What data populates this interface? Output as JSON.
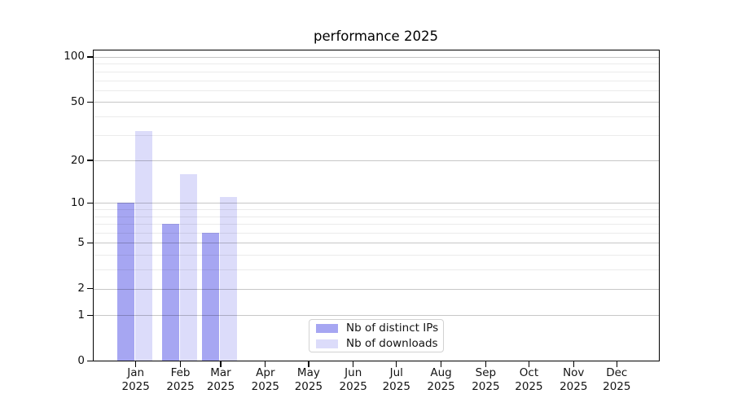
{
  "chart_data": {
    "type": "bar",
    "title": "performance 2025",
    "categories": [
      "Jan 2025",
      "Feb 2025",
      "Mar 2025",
      "Apr 2025",
      "May 2025",
      "Jun 2025",
      "Jul 2025",
      "Aug 2025",
      "Sep 2025",
      "Oct 2025",
      "Nov 2025",
      "Dec 2025"
    ],
    "month_labels": [
      "Jan",
      "Feb",
      "Mar",
      "Apr",
      "May",
      "Jun",
      "Jul",
      "Aug",
      "Sep",
      "Oct",
      "Nov",
      "Dec"
    ],
    "year_label": "2025",
    "series": [
      {
        "name": "Nb of distinct IPs",
        "color": "#a6a6f2",
        "values": [
          10,
          7,
          6,
          0,
          0,
          0,
          0,
          0,
          0,
          0,
          0,
          0
        ]
      },
      {
        "name": "Nb of downloads",
        "color": "#dcdcfa",
        "values": [
          32,
          16,
          11,
          0,
          0,
          0,
          0,
          0,
          0,
          0,
          0,
          0
        ]
      }
    ],
    "y_axis": {
      "scale": "symlog (log(1+x))",
      "ticks": [
        0,
        1,
        2,
        5,
        10,
        20,
        50,
        100
      ],
      "minor_ticks": [
        3,
        4,
        6,
        7,
        8,
        9,
        30,
        40,
        60,
        70,
        80,
        90
      ],
      "range_max": 113
    },
    "x_axis": {
      "unit": "month"
    },
    "grid": true,
    "legend": {
      "position": "lower center"
    }
  }
}
